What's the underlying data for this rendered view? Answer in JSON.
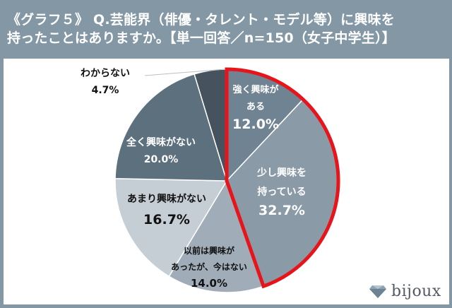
{
  "header": {
    "line1": "《グラフ５》 Q.芸能界（俳優・タレント・モデル等）に興味を",
    "line2": "持ったことはありますか。【単一回答／n=150（女子中学生）】"
  },
  "chart_data": {
    "type": "pie",
    "title": "《グラフ５》 Q.芸能界（俳優・タレント・モデル等）に興味を持ったことはありますか。【単一回答／n=150（女子中学生）】",
    "start_angle": "12 o'clock",
    "direction": "clockwise",
    "unit": "%",
    "slices": [
      {
        "label": "強く興味がある",
        "label_lines": [
          "強く興味が",
          "ある"
        ],
        "value": 12.0,
        "display": "12.0%",
        "color": "#6f8392",
        "highlighted": true
      },
      {
        "label": "少し興味を持っている",
        "label_lines": [
          "少し興味を",
          "持っている"
        ],
        "value": 32.7,
        "display": "32.7%",
        "color": "#8a9aa7",
        "highlighted": true
      },
      {
        "label": "以前は興味があったが、今はない",
        "label_lines": [
          "以前は興味が",
          "あったが、今はない"
        ],
        "value": 14.0,
        "display": "14.0%",
        "color": "#a0adb8",
        "highlighted": false
      },
      {
        "label": "あまり興味がない",
        "label_lines": [
          "あまり興味がない"
        ],
        "value": 16.7,
        "display": "16.7%",
        "color": "#c5cdd5",
        "highlighted": false
      },
      {
        "label": "全く興味がない",
        "label_lines": [
          "全く興味がない"
        ],
        "value": 20.0,
        "display": "20.0%",
        "color": "#5d707e",
        "highlighted": false
      },
      {
        "label": "わからない",
        "label_lines": [
          "わからない"
        ],
        "value": 4.7,
        "display": "4.7%",
        "color": "#46535e",
        "highlighted": false
      }
    ],
    "highlight_outline_color": "#e8141b",
    "legend": "none (inline labels)"
  },
  "labels": {
    "s0_l1": "強く興味が",
    "s0_l2": "ある",
    "s0_v": "12.0%",
    "s1_l1": "少し興味を",
    "s1_l2": "持っている",
    "s1_v": "32.7%",
    "s2_l1": "以前は興味が",
    "s2_l2": "あったが、今はない",
    "s2_v": "14.0%",
    "s3_l1": "あまり興味がない",
    "s3_v": "16.7%",
    "s4_l1": "全く興味がない",
    "s4_v": "20.0%",
    "s5_l1": "わからない",
    "s5_v": "4.7%"
  },
  "logo": {
    "text": "bijoux",
    "icon": "diamond-icon"
  }
}
